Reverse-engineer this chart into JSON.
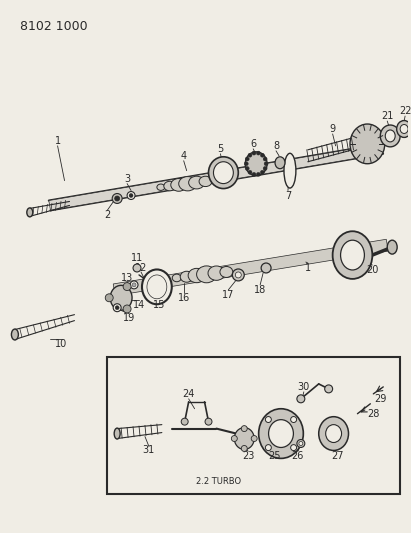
{
  "title": "8102 1000",
  "bg": "#f0ede5",
  "lc": "#2a2a2a",
  "fig_width": 4.11,
  "fig_height": 5.33,
  "dpi": 100
}
